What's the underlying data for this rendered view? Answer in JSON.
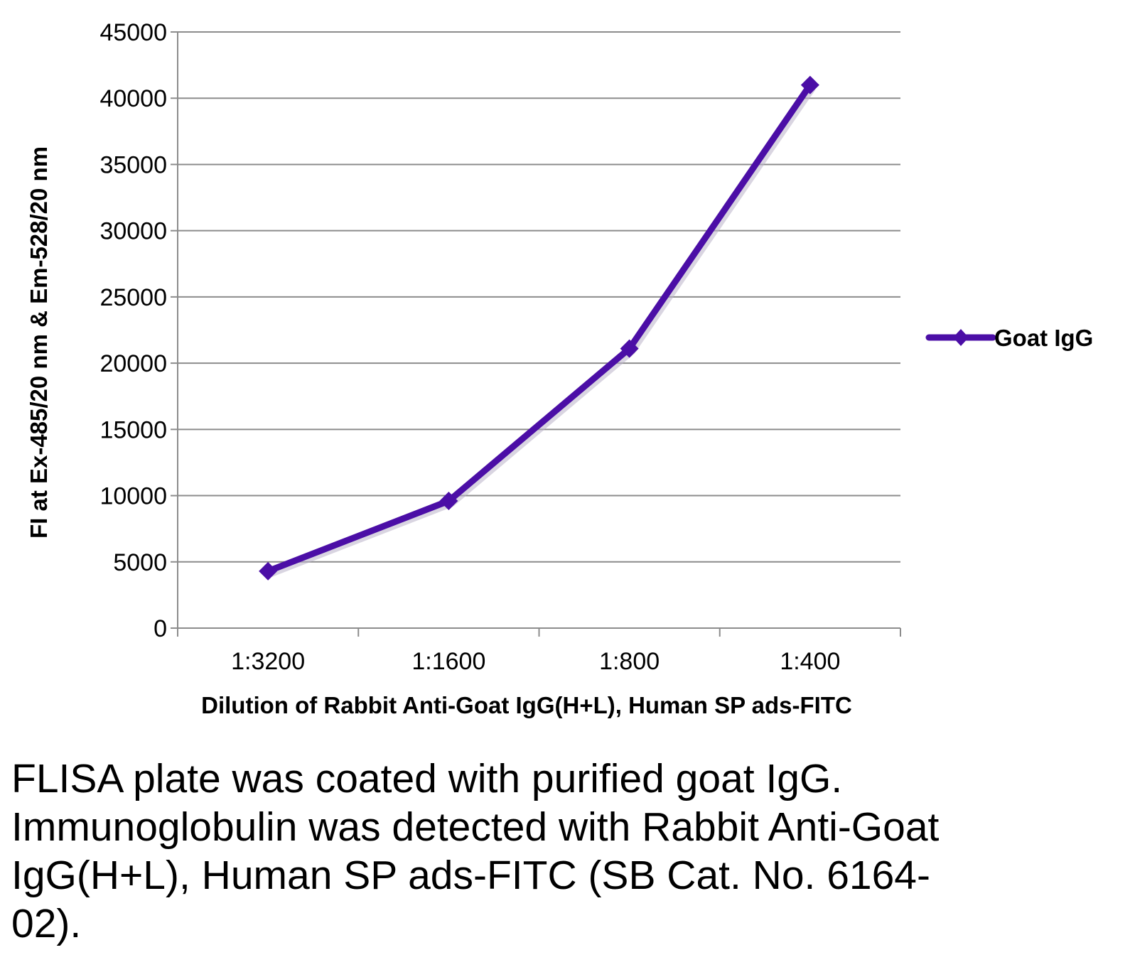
{
  "chart_data": {
    "type": "line",
    "title": "",
    "xlabel": "Dilution of Rabbit Anti-Goat IgG(H+L), Human SP ads-FITC",
    "ylabel": "FI at Ex-485/20 nm & Em-528/20 nm",
    "categories": [
      "1:3200",
      "1:1600",
      "1:800",
      "1:400"
    ],
    "ylim": [
      0,
      45000
    ],
    "yticks": [
      "0",
      "5000",
      "10000",
      "15000",
      "20000",
      "25000",
      "30000",
      "35000",
      "40000",
      "45000"
    ],
    "series": [
      {
        "name": "Goat IgG",
        "values": [
          4300,
          9600,
          21100,
          41000
        ],
        "color": "#4B0EA6",
        "marker": "diamond"
      }
    ],
    "grid": true,
    "legend_position": "right"
  },
  "caption": "FLISA plate was coated with purified goat IgG.  Immunoglobulin was detected with Rabbit Anti-Goat IgG(H+L), Human SP ads-FITC (SB Cat. No. 6164-02)."
}
